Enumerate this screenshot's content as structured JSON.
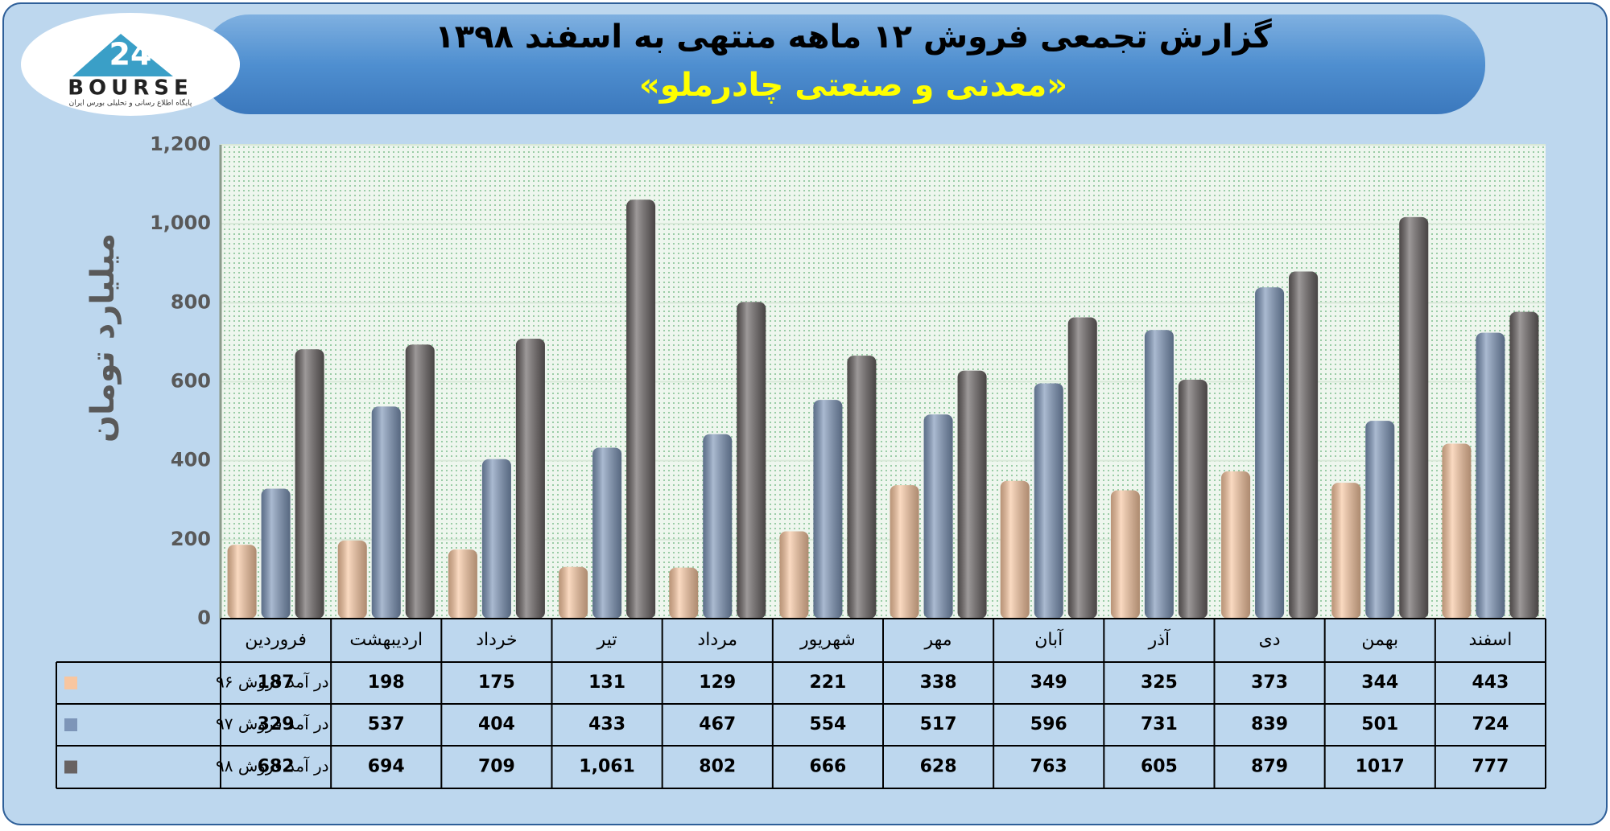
{
  "logo": {
    "mark": "24",
    "name": "BOURSE",
    "tagline": "پایگاه اطلاع رسانی و تحلیلی بورس ایران"
  },
  "chart_data": {
    "type": "bar",
    "title": "گزارش تجمعی فروش ۱۲ ماهه منتهی به اسفند ۱۳۹۸",
    "subtitle": "«معدنی و صنعتی چادرملو»",
    "y_label": "میلیارد تومان",
    "categories": [
      "فروردین",
      "اردیبهشت",
      "خرداد",
      "تیر",
      "مرداد",
      "شهریور",
      "مهر",
      "آبان",
      "آذر",
      "دی",
      "بهمن",
      "اسفند"
    ],
    "series": [
      {
        "name": "در آمد فروش ۹۶",
        "color": "#f8c6a0",
        "values": [
          187,
          198,
          175,
          131,
          129,
          221,
          338,
          349,
          325,
          373,
          344,
          443
        ]
      },
      {
        "name": "در آمد فروش ۹۷",
        "color": "#7d95b8",
        "values": [
          329,
          537,
          404,
          433,
          467,
          554,
          517,
          596,
          731,
          839,
          501,
          724
        ]
      },
      {
        "name": "در آمد فروش ۹۸",
        "color": "#686262",
        "values": [
          682,
          694,
          709,
          1061,
          802,
          666,
          628,
          763,
          605,
          879,
          1017,
          777
        ],
        "value_labels": [
          "682",
          "694",
          "709",
          "1,061",
          "802",
          "666",
          "628",
          "763",
          "605",
          "879",
          "1017",
          "777"
        ]
      }
    ],
    "ylim": [
      0,
      1200
    ],
    "yticks": [
      0,
      200,
      400,
      600,
      800,
      {
        "value": 1000,
        "label": "1,000"
      },
      {
        "value": 1200,
        "label": "1,200"
      }
    ],
    "grid": true
  }
}
